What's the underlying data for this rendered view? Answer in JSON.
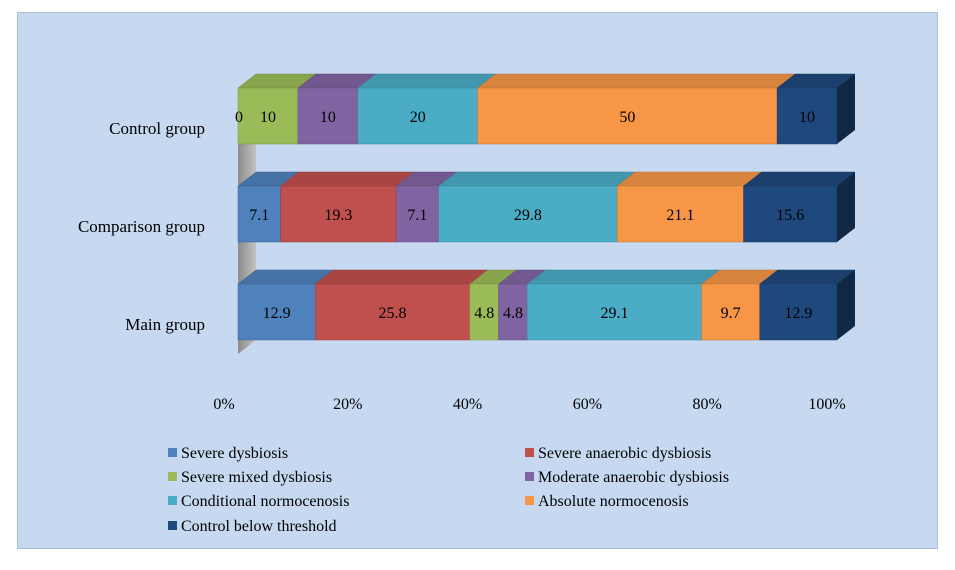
{
  "chart_data": {
    "type": "bar",
    "orientation": "horizontal",
    "stacked": "percent",
    "title": "",
    "xlabel": "",
    "ylabel": "",
    "xlim": [
      0,
      100
    ],
    "xticks": [
      "0%",
      "20%",
      "40%",
      "60%",
      "80%",
      "100%"
    ],
    "categories": [
      "Main group",
      "Comparison group",
      "Control group"
    ],
    "series": [
      {
        "name": "Severe dysbiosis",
        "color": "#4f81bd",
        "values": [
          12.9,
          7.1,
          0
        ]
      },
      {
        "name": "Severe anaerobic dysbiosis",
        "color": "#c0504d",
        "values": [
          25.8,
          19.3,
          null
        ]
      },
      {
        "name": "Severe mixed dysbiosis",
        "color": "#9bbb59",
        "values": [
          4.8,
          null,
          10
        ]
      },
      {
        "name": "Moderate anaerobic dysbiosis",
        "color": "#8064a2",
        "values": [
          4.8,
          7.1,
          10
        ]
      },
      {
        "name": "Conditional normocenosis",
        "color": "#4bacc6",
        "values": [
          29.1,
          29.8,
          20
        ]
      },
      {
        "name": "Absolute normocenosis",
        "color": "#f79646",
        "values": [
          9.7,
          21.1,
          50
        ]
      },
      {
        "name": "Control below threshold",
        "color": "#1f497d",
        "values": [
          12.9,
          15.6,
          10
        ]
      }
    ],
    "data_labels": [
      [
        "12.9",
        "25.8",
        "4.8",
        "4.8",
        "29.1",
        "9.7",
        "12.9"
      ],
      [
        "7.1",
        "19.3",
        "",
        "7.1",
        "29.8",
        "21.1",
        "15.6"
      ],
      [
        "0",
        "",
        "10",
        "10",
        "20",
        "50",
        "10"
      ]
    ],
    "legend_position": "bottom"
  }
}
